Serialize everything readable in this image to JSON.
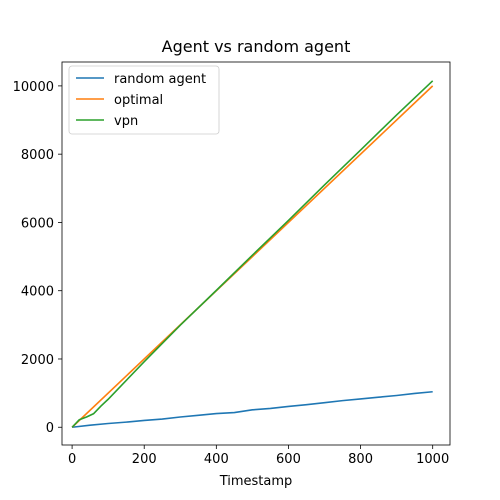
{
  "chart_data": {
    "type": "line",
    "title": "Agent vs random agent",
    "xlabel": "Timestamp",
    "ylabel": "",
    "xlim": [
      -28,
      1048
    ],
    "ylim": [
      -520,
      10700
    ],
    "xticks": [
      0,
      200,
      400,
      600,
      800,
      1000
    ],
    "yticks": [
      0,
      2000,
      4000,
      6000,
      8000,
      10000
    ],
    "grid": false,
    "legend_position": "top-left",
    "series": [
      {
        "name": "random agent",
        "color": "#1f77b4",
        "x": [
          0,
          50,
          100,
          150,
          200,
          250,
          300,
          350,
          400,
          450,
          500,
          550,
          600,
          650,
          700,
          750,
          800,
          850,
          900,
          950,
          1000
        ],
        "y": [
          0,
          60,
          110,
          150,
          200,
          240,
          300,
          350,
          400,
          430,
          510,
          550,
          610,
          660,
          720,
          780,
          830,
          880,
          930,
          990,
          1040
        ]
      },
      {
        "name": "optimal",
        "color": "#ff7f0e",
        "x": [
          0,
          1000
        ],
        "y": [
          0,
          10000
        ]
      },
      {
        "name": "vpn",
        "color": "#2ca02c",
        "x": [
          0,
          20,
          40,
          60,
          80,
          100,
          200,
          300,
          400,
          500,
          600,
          700,
          800,
          900,
          1000
        ],
        "y": [
          0,
          220,
          300,
          400,
          620,
          820,
          1920,
          2990,
          4010,
          5040,
          6060,
          7100,
          8120,
          9150,
          10150
        ]
      }
    ]
  }
}
